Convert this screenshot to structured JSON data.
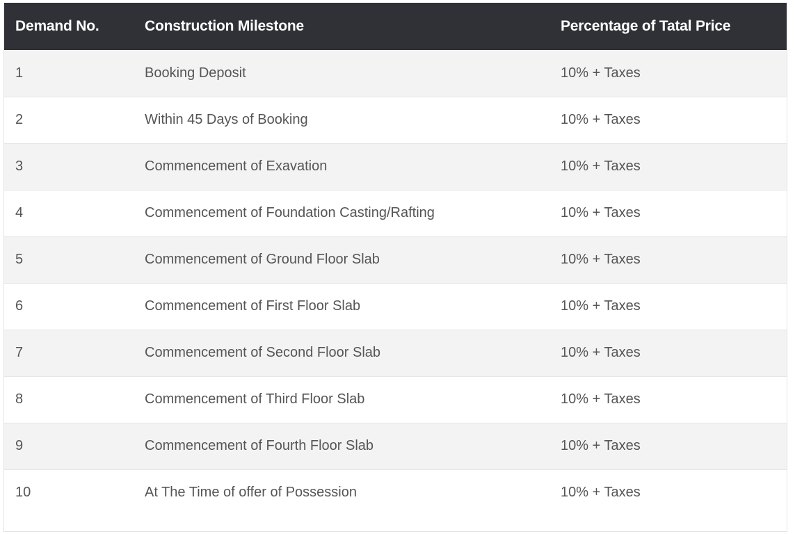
{
  "table": {
    "headers": [
      "Demand No.",
      "Construction Milestone",
      "Percentage of Tatal Price"
    ],
    "rows": [
      {
        "no": "1",
        "milestone": "Booking Deposit",
        "percentage": "10% + Taxes"
      },
      {
        "no": "2",
        "milestone": "Within 45 Days of Booking",
        "percentage": "10% + Taxes"
      },
      {
        "no": "3",
        "milestone": "Commencement of Exavation",
        "percentage": "10% + Taxes"
      },
      {
        "no": "4",
        "milestone": "Commencement of Foundation Casting/Rafting",
        "percentage": "10% + Taxes"
      },
      {
        "no": "5",
        "milestone": "Commencement of Ground Floor Slab",
        "percentage": "10% + Taxes"
      },
      {
        "no": "6",
        "milestone": "Commencement of First Floor Slab",
        "percentage": "10% + Taxes"
      },
      {
        "no": "7",
        "milestone": "Commencement of Second Floor Slab",
        "percentage": "10% + Taxes"
      },
      {
        "no": "8",
        "milestone": "Commencement of Third Floor Slab",
        "percentage": "10% + Taxes"
      },
      {
        "no": "9",
        "milestone": "Commencement of Fourth Floor Slab",
        "percentage": "10% + Taxes"
      },
      {
        "no": "10",
        "milestone": "At The Time of offer of Possession",
        "percentage": "10% + Taxes"
      }
    ]
  },
  "colors": {
    "header_bg": "#2f3136",
    "header_text": "#ffffff",
    "row_alt_bg": "#f3f3f3",
    "body_text": "#555555"
  }
}
